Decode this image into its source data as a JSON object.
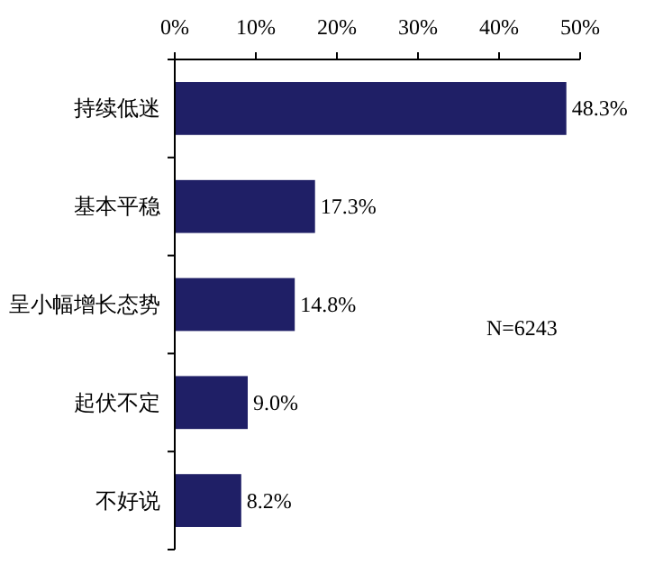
{
  "chart_data": {
    "type": "bar",
    "orientation": "horizontal",
    "categories": [
      "持续低迷",
      "基本平稳",
      "呈小幅增长态势",
      "起伏不定",
      "不好说"
    ],
    "values": [
      48.3,
      17.3,
      14.8,
      9.0,
      8.2
    ],
    "value_labels": [
      "48.3%",
      "17.3%",
      "14.8%",
      "9.0%",
      "8.2%"
    ],
    "color": "#1f1f66",
    "xlim": [
      0,
      50
    ],
    "xticks": [
      {
        "value": 0,
        "label": "0%"
      },
      {
        "value": 10,
        "label": "10%"
      },
      {
        "value": 20,
        "label": "20%"
      },
      {
        "value": 30,
        "label": "30%"
      },
      {
        "value": 40,
        "label": "40%"
      },
      {
        "value": 50,
        "label": "50%"
      }
    ],
    "grid": false,
    "annotations": [
      "N=6243"
    ]
  }
}
